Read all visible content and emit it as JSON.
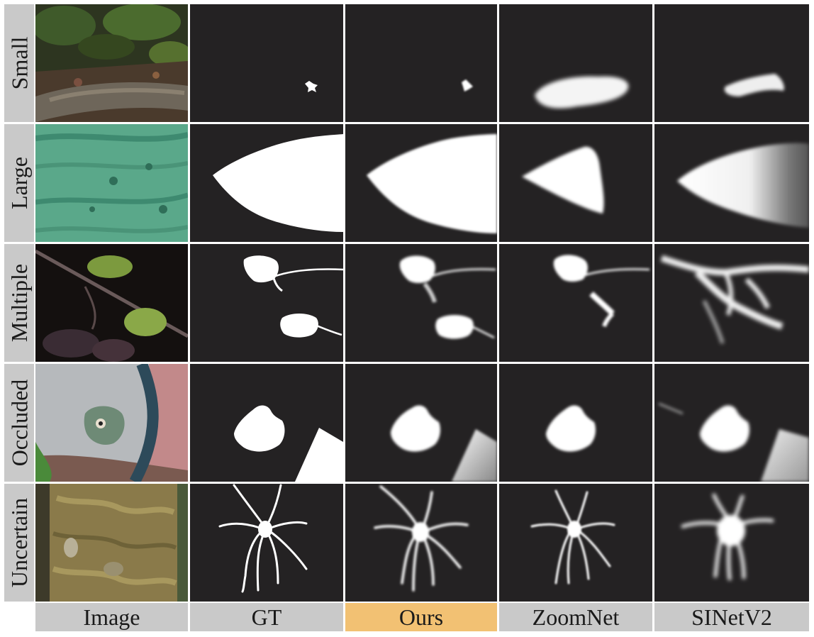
{
  "rows": [
    "Small",
    "Large",
    "Multiple",
    "Occluded",
    "Uncertain"
  ],
  "columns": [
    "Image",
    "GT",
    "Ours",
    "ZoomNet",
    "SINetV2"
  ],
  "highlight_column": "Ours",
  "colors": {
    "mask_background": "#242223",
    "label_background": "#c9c9c9",
    "highlight": "#f2c173",
    "mask": "#ffffff"
  }
}
